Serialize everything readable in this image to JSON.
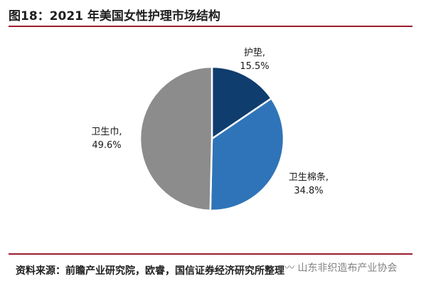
{
  "header": {
    "title": "图18：2021 年美国女性护理市场结构"
  },
  "chart_data": {
    "type": "pie",
    "title": "",
    "slices": [
      {
        "label": "护垫,",
        "value": 15.5,
        "value_label": "15.5%",
        "color": "#0f3d6e"
      },
      {
        "label": "卫生棉条,",
        "value": 34.8,
        "value_label": "34.8%",
        "color": "#2f74b8"
      },
      {
        "label": "卫生巾,",
        "value": 49.6,
        "value_label": "49.6%",
        "color": "#8c8c8c"
      }
    ],
    "start": "12 o'clock, clockwise",
    "legend": "none"
  },
  "footer": {
    "source": "资料来源：前瞻产业研究院，欧睿，国信证券经济研究所整理",
    "watermark": "〰 山东非织造布产业协会"
  }
}
